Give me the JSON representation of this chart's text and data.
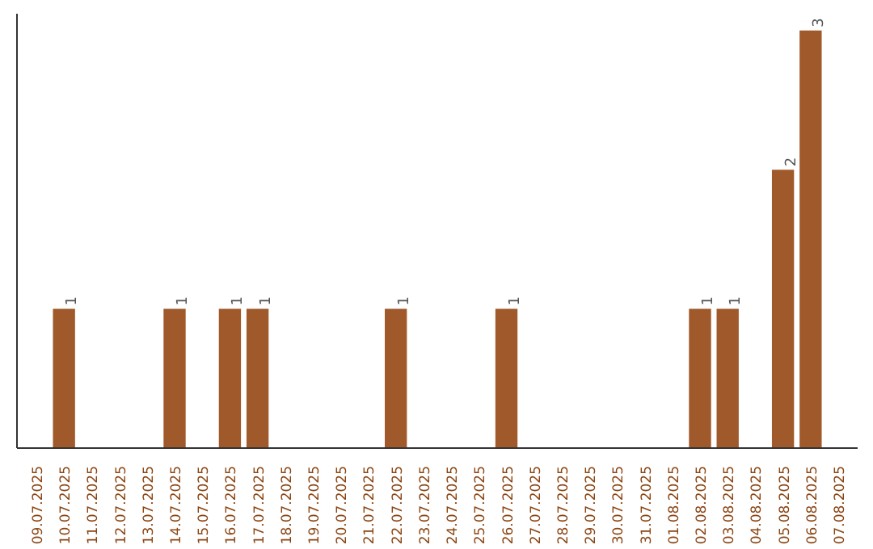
{
  "chart_data": {
    "type": "bar",
    "categories": [
      "09.07.2025",
      "10.07.2025",
      "11.07.2025",
      "12.07.2025",
      "13.07.2025",
      "14.07.2025",
      "15.07.2025",
      "16.07.2025",
      "17.07.2025",
      "18.07.2025",
      "19.07.2025",
      "20.07.2025",
      "21.07.2025",
      "22.07.2025",
      "23.07.2025",
      "24.07.2025",
      "25.07.2025",
      "26.07.2025",
      "27.07.2025",
      "28.07.2025",
      "29.07.2025",
      "30.07.2025",
      "31.07.2025",
      "01.08.2025",
      "02.08.2025",
      "03.08.2025",
      "04.08.2025",
      "05.08.2025",
      "06.08.2025",
      "07.08.2025"
    ],
    "values": [
      0,
      1,
      0,
      0,
      0,
      1,
      0,
      1,
      1,
      0,
      0,
      0,
      0,
      1,
      0,
      0,
      0,
      1,
      0,
      0,
      0,
      0,
      0,
      0,
      1,
      1,
      0,
      2,
      3,
      0
    ],
    "value_labels": [
      null,
      "1",
      null,
      null,
      null,
      "1",
      null,
      "1",
      "1",
      null,
      null,
      null,
      null,
      "1",
      null,
      null,
      null,
      "1",
      null,
      null,
      null,
      null,
      null,
      null,
      "1",
      "1",
      null,
      "2",
      "3",
      null
    ],
    "color": "#a0592a",
    "grid": false,
    "tick_labels": "x"
  }
}
